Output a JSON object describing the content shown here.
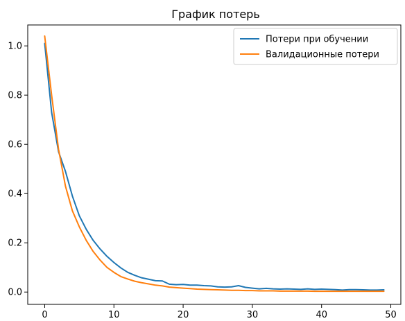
{
  "chart_data": {
    "type": "line",
    "title": "График потерь",
    "xlabel": "",
    "ylabel": "",
    "xlim": [
      -2.45,
      51.45
    ],
    "ylim": [
      -0.05,
      1.085
    ],
    "xticks": [
      0,
      10,
      20,
      30,
      40,
      50
    ],
    "yticks": [
      0.0,
      0.2,
      0.4,
      0.6,
      0.8,
      1.0
    ],
    "xtick_labels": [
      "0",
      "10",
      "20",
      "30",
      "40",
      "50"
    ],
    "ytick_labels": [
      "0.0",
      "0.2",
      "0.4",
      "0.6",
      "0.8",
      "1.0"
    ],
    "grid": false,
    "legend_position": "top-right",
    "x": [
      0,
      1,
      2,
      3,
      4,
      5,
      6,
      7,
      8,
      9,
      10,
      11,
      12,
      13,
      14,
      15,
      16,
      17,
      18,
      19,
      20,
      21,
      22,
      23,
      24,
      25,
      26,
      27,
      28,
      29,
      30,
      31,
      32,
      33,
      34,
      35,
      36,
      37,
      38,
      39,
      40,
      41,
      42,
      43,
      44,
      45,
      46,
      47,
      48,
      49
    ],
    "series": [
      {
        "name": "Потери при обучении",
        "color": "#1f77b4",
        "values": [
          1.01,
          0.73,
          0.57,
          0.49,
          0.39,
          0.31,
          0.255,
          0.21,
          0.175,
          0.145,
          0.12,
          0.098,
          0.08,
          0.068,
          0.058,
          0.052,
          0.046,
          0.045,
          0.032,
          0.03,
          0.031,
          0.028,
          0.028,
          0.026,
          0.025,
          0.021,
          0.02,
          0.021,
          0.026,
          0.019,
          0.016,
          0.013,
          0.015,
          0.013,
          0.012,
          0.013,
          0.012,
          0.011,
          0.013,
          0.011,
          0.012,
          0.011,
          0.01,
          0.008,
          0.01,
          0.01,
          0.009,
          0.008,
          0.008,
          0.009
        ]
      },
      {
        "name": "Валидационные потери",
        "color": "#ff7f0e",
        "values": [
          1.04,
          0.8,
          0.58,
          0.43,
          0.33,
          0.265,
          0.21,
          0.165,
          0.13,
          0.1,
          0.08,
          0.063,
          0.053,
          0.044,
          0.038,
          0.033,
          0.028,
          0.025,
          0.02,
          0.018,
          0.016,
          0.014,
          0.012,
          0.011,
          0.01,
          0.009,
          0.008,
          0.007,
          0.007,
          0.006,
          0.006,
          0.005,
          0.005,
          0.005,
          0.004,
          0.004,
          0.004,
          0.004,
          0.004,
          0.003,
          0.003,
          0.003,
          0.003,
          0.003,
          0.003,
          0.003,
          0.003,
          0.003,
          0.003,
          0.003
        ]
      }
    ]
  }
}
